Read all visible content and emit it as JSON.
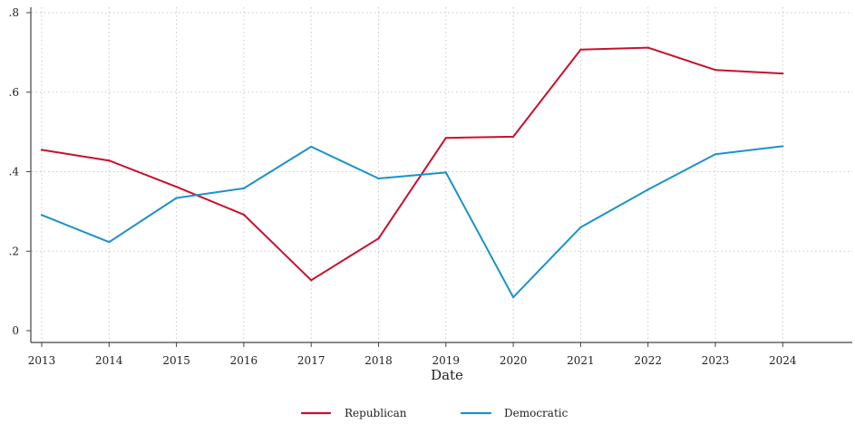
{
  "chart_data": {
    "type": "line",
    "title": "",
    "xlabel": "Date",
    "ylabel": "",
    "x": [
      2013,
      2014,
      2015,
      2016,
      2017,
      2018,
      2019,
      2020,
      2021,
      2022,
      2023,
      2024
    ],
    "xlim": [
      2013,
      2025
    ],
    "ylim": [
      0,
      0.8
    ],
    "y_ticks": [
      0,
      0.2,
      0.4,
      0.6,
      0.8
    ],
    "y_tick_labels": [
      "0",
      ".2",
      ".4",
      ".6",
      ".8"
    ],
    "x_tick_labels": [
      "2013",
      "2014",
      "2015",
      "2016",
      "2017",
      "2018",
      "2019",
      "2020",
      "2021",
      "2022",
      "2023",
      "2024"
    ],
    "grid": true,
    "legend_position": "bottom",
    "series": [
      {
        "name": "Republican",
        "color": "#c8102e",
        "values": [
          0.455,
          0.428,
          0.362,
          0.292,
          0.127,
          0.232,
          0.485,
          0.488,
          0.707,
          0.712,
          0.656,
          0.647
        ]
      },
      {
        "name": "Democratic",
        "color": "#1b93c8",
        "values": [
          0.291,
          0.223,
          0.334,
          0.358,
          0.463,
          0.383,
          0.398,
          0.084,
          0.26,
          0.355,
          0.444,
          0.464
        ]
      }
    ]
  }
}
